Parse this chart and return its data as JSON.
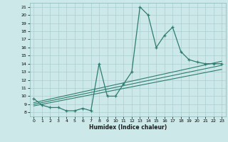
{
  "xlabel": "Humidex (Indice chaleur)",
  "bg_color": "#cce8e8",
  "line_color": "#2e7d6e",
  "grid_color": "#aacfcf",
  "xlim": [
    -0.5,
    23.5
  ],
  "ylim": [
    7.5,
    21.5
  ],
  "xticks": [
    0,
    1,
    2,
    3,
    4,
    5,
    6,
    7,
    8,
    9,
    10,
    11,
    12,
    13,
    14,
    15,
    16,
    17,
    18,
    19,
    20,
    21,
    22,
    23
  ],
  "yticks": [
    8,
    9,
    10,
    11,
    12,
    13,
    14,
    15,
    16,
    17,
    18,
    19,
    20,
    21
  ],
  "series1_x": [
    0,
    1,
    2,
    3,
    4,
    5,
    6,
    7,
    8,
    9,
    10,
    11,
    12,
    13,
    14,
    15,
    16,
    17,
    18,
    19,
    20,
    21,
    22,
    23
  ],
  "series1_y": [
    9.7,
    8.9,
    8.6,
    8.6,
    8.2,
    8.2,
    8.5,
    8.2,
    14.0,
    10.0,
    10.0,
    11.5,
    13.0,
    21.0,
    20.0,
    16.0,
    17.5,
    18.5,
    15.5,
    14.5,
    14.2,
    14.0,
    14.0,
    14.0
  ],
  "series2_x": [
    0,
    23
  ],
  "series2_y": [
    9.2,
    14.3
  ],
  "series3_x": [
    0,
    23
  ],
  "series3_y": [
    9.0,
    13.8
  ],
  "series4_x": [
    0,
    23
  ],
  "series4_y": [
    8.8,
    13.3
  ]
}
